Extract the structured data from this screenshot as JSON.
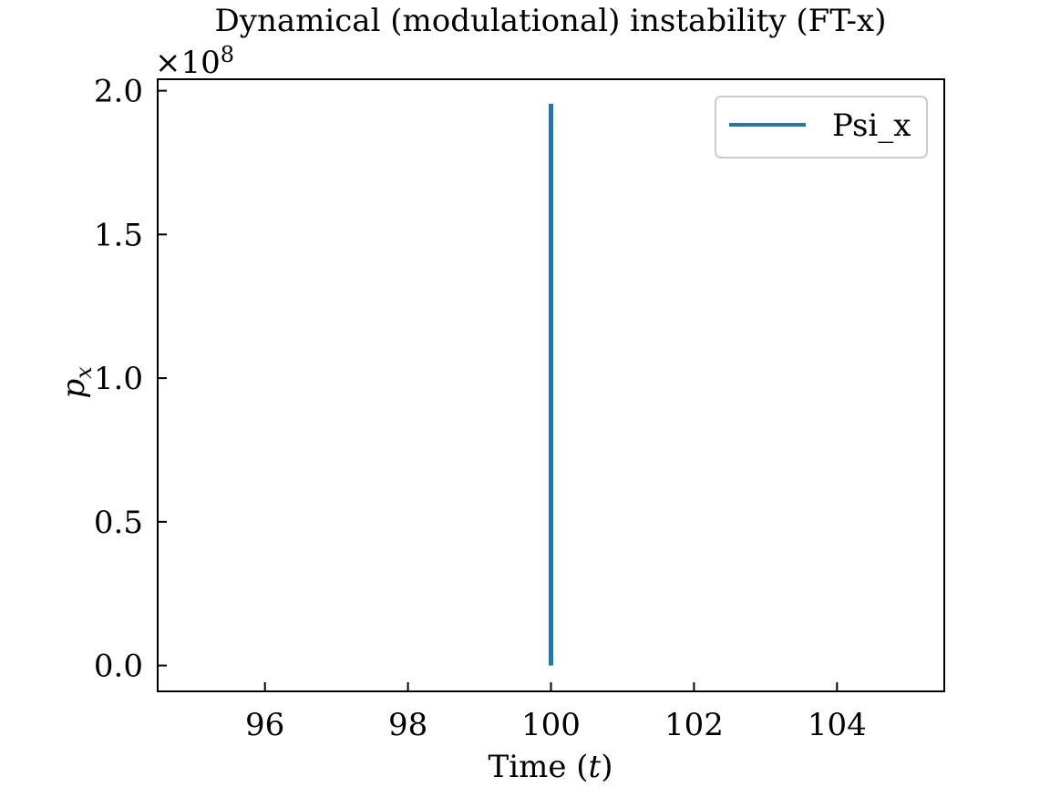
{
  "chart_data": {
    "type": "line",
    "title": "Dynamical (modulational) instability (FT-x)",
    "xlabel": "Time (t)",
    "xlabel_parts": {
      "before": "Time (",
      "var": "t",
      "after": ")"
    },
    "ylabel": "p_x",
    "ylabel_parts": {
      "base": "p",
      "sub": "x"
    },
    "y_offset_text": "×10^8",
    "y_offset_parts": {
      "base": "×10",
      "exp": "8"
    },
    "xlim": [
      94.5,
      105.5
    ],
    "ylim": [
      -0.09,
      2.04
    ],
    "xticks": [
      96,
      98,
      100,
      102,
      104
    ],
    "xtick_labels": [
      "96",
      "98",
      "100",
      "102",
      "104"
    ],
    "yticks": [
      0.0,
      0.5,
      1.0,
      1.5,
      2.0
    ],
    "ytick_labels": [
      "0.0",
      "0.5",
      "1.0",
      "1.5",
      "2.0"
    ],
    "y_multiplier": 100000000,
    "grid": false,
    "legend_position": "upper right",
    "series": [
      {
        "name": "Psi_x",
        "legend_label": "Psi_x",
        "color": "#1f77b4",
        "x": [
          100,
          100
        ],
        "y": [
          0.0,
          1.955
        ]
      }
    ]
  }
}
